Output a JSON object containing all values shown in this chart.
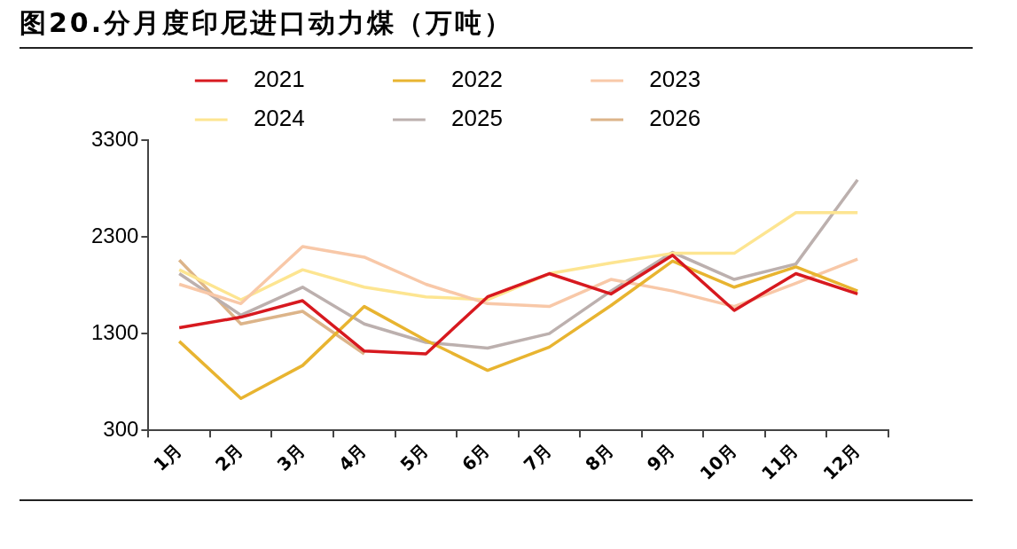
{
  "chart_data": {
    "type": "line",
    "title": "图20.分月度印尼进口动力煤（万吨）",
    "categories": [
      "1月",
      "2月",
      "3月",
      "4月",
      "5月",
      "6月",
      "7月",
      "8月",
      "9月",
      "10月",
      "11月",
      "12月"
    ],
    "series": [
      {
        "name": "2021",
        "color": "#d7191f",
        "values": [
          1360,
          1470,
          1640,
          1120,
          1090,
          1680,
          1920,
          1710,
          2110,
          1540,
          1920,
          1710
        ]
      },
      {
        "name": "2022",
        "color": "#e8b430",
        "values": [
          1220,
          630,
          970,
          1580,
          1230,
          920,
          1160,
          1590,
          2050,
          1780,
          1990,
          1740
        ]
      },
      {
        "name": "2023",
        "color": "#f8c8a8",
        "values": [
          1810,
          1610,
          2200,
          2090,
          1810,
          1610,
          1580,
          1860,
          1740,
          1580,
          1820,
          2070
        ]
      },
      {
        "name": "2024",
        "color": "#fde591",
        "values": [
          1960,
          1650,
          1960,
          1780,
          1680,
          1650,
          1920,
          2030,
          2130,
          2130,
          2550,
          2550
        ]
      },
      {
        "name": "2025",
        "color": "#bcb0ae",
        "values": [
          1920,
          1490,
          1780,
          1400,
          1210,
          1150,
          1300,
          1740,
          2140,
          1860,
          2020,
          2890
        ]
      },
      {
        "name": "2026",
        "color": "#dcb489",
        "values": [
          2060,
          1400,
          1530,
          1090,
          null,
          null,
          null,
          null,
          null,
          null,
          null,
          null
        ]
      }
    ],
    "ylim": [
      300,
      3300
    ],
    "yticks": [
      300,
      1300,
      2300,
      3300
    ],
    "legend": "top",
    "marker": "none",
    "line_style": "solid"
  }
}
